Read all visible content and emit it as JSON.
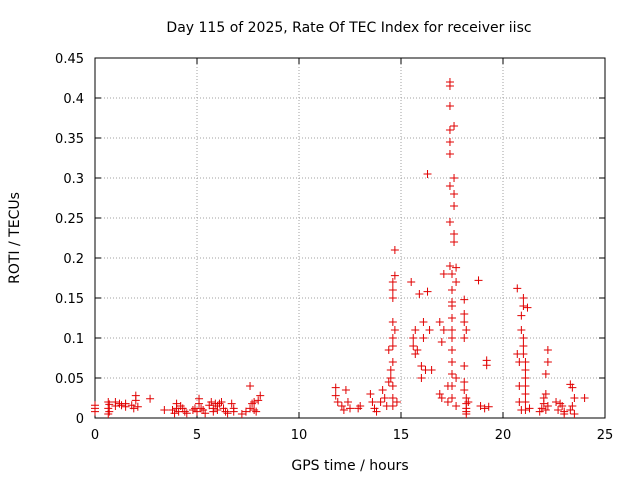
{
  "chart_data": {
    "type": "scatter",
    "title": "Day 115 of 2025, Rate Of TEC Index for receiver iisc",
    "xlabel": "GPS time / hours",
    "ylabel": "ROTI / TECUs",
    "xlim": [
      0,
      25
    ],
    "ylim": [
      0,
      0.45
    ],
    "xticks": [
      "0",
      "5",
      "10",
      "15",
      "20",
      "25"
    ],
    "yticks": [
      "0",
      "0.05",
      "0.1",
      "0.15",
      "0.2",
      "0.25",
      "0.3",
      "0.35",
      "0.4",
      "0.45"
    ],
    "grid": true,
    "marker": "+",
    "color": "#e00000",
    "series": [
      {
        "x": [
          0.0,
          0.0,
          0.0,
          0.65,
          0.65,
          0.65,
          0.7,
          0.7,
          1.0,
          1.0,
          1.2,
          1.3,
          1.5,
          1.5,
          1.8,
          1.9,
          2.0,
          2.0,
          2.1,
          2.7,
          3.4,
          3.8,
          3.9,
          4.0,
          4.0,
          4.1,
          4.2,
          4.3,
          4.4,
          4.5,
          4.8,
          4.9,
          5.0,
          5.1,
          5.1,
          5.2,
          5.3,
          5.4,
          5.6,
          5.7,
          5.8,
          5.8,
          5.9,
          6.0,
          6.0,
          6.1,
          6.2,
          6.3,
          6.4,
          6.5,
          6.7,
          6.8,
          6.8,
          7.2,
          7.4,
          7.6,
          7.6,
          7.7,
          7.8,
          7.8,
          7.9,
          8.0,
          8.1,
          11.8,
          11.8,
          11.9,
          12.1,
          12.2,
          12.3,
          12.4,
          12.5,
          12.9,
          13.0,
          13.5,
          13.6,
          13.7,
          13.8,
          14.0,
          14.1,
          14.2,
          14.3,
          14.4,
          14.4,
          14.5,
          14.5,
          14.6,
          14.6,
          14.6,
          14.6,
          14.6,
          14.6,
          14.6,
          14.6,
          14.6,
          14.6,
          14.7,
          14.7,
          14.7,
          14.8,
          15.5,
          15.6,
          15.6,
          15.7,
          15.7,
          15.8,
          15.9,
          16.0,
          16.0,
          16.1,
          16.1,
          16.2,
          16.3,
          16.3,
          16.4,
          16.5,
          16.9,
          16.9,
          17.0,
          17.0,
          17.1,
          17.1,
          17.3,
          17.3,
          17.4,
          17.4,
          17.4,
          17.4,
          17.4,
          17.4,
          17.4,
          17.4,
          17.4,
          17.5,
          17.5,
          17.5,
          17.5,
          17.5,
          17.5,
          17.5,
          17.5,
          17.5,
          17.5,
          17.5,
          17.5,
          17.6,
          17.6,
          17.6,
          17.6,
          17.6,
          17.6,
          17.7,
          17.7,
          17.7,
          17.7,
          18.1,
          18.1,
          18.1,
          18.1,
          18.1,
          18.1,
          18.1,
          18.2,
          18.2,
          18.2,
          18.2,
          18.2,
          18.2,
          18.3,
          18.8,
          18.9,
          19.1,
          19.2,
          19.2,
          19.3,
          20.7,
          20.7,
          20.8,
          20.8,
          20.8,
          20.9,
          20.9,
          20.9,
          21.0,
          21.0,
          21.0,
          21.0,
          21.0,
          21.1,
          21.1,
          21.1,
          21.1,
          21.1,
          21.1,
          21.1,
          21.2,
          21.3,
          21.8,
          21.9,
          22.0,
          22.0,
          22.1,
          22.1,
          22.1,
          22.2,
          22.2,
          22.2,
          22.6,
          22.7,
          22.8,
          22.9,
          23.0,
          23.0,
          23.3,
          23.3,
          23.4,
          23.4,
          23.5,
          23.5,
          24.0
        ],
        "y": [
          0.008,
          0.012,
          0.016,
          0.005,
          0.012,
          0.02,
          0.008,
          0.017,
          0.015,
          0.02,
          0.018,
          0.016,
          0.014,
          0.018,
          0.016,
          0.012,
          0.022,
          0.028,
          0.014,
          0.024,
          0.01,
          0.01,
          0.006,
          0.012,
          0.018,
          0.008,
          0.015,
          0.012,
          0.008,
          0.006,
          0.01,
          0.012,
          0.008,
          0.018,
          0.024,
          0.012,
          0.01,
          0.006,
          0.016,
          0.02,
          0.008,
          0.012,
          0.018,
          0.015,
          0.01,
          0.018,
          0.02,
          0.012,
          0.008,
          0.006,
          0.018,
          0.012,
          0.008,
          0.005,
          0.008,
          0.04,
          0.012,
          0.018,
          0.02,
          0.01,
          0.008,
          0.022,
          0.028,
          0.038,
          0.028,
          0.02,
          0.015,
          0.01,
          0.035,
          0.02,
          0.012,
          0.012,
          0.015,
          0.03,
          0.02,
          0.012,
          0.008,
          0.02,
          0.035,
          0.025,
          0.015,
          0.045,
          0.085,
          0.05,
          0.06,
          0.17,
          0.16,
          0.15,
          0.12,
          0.1,
          0.09,
          0.07,
          0.04,
          0.025,
          0.015,
          0.21,
          0.178,
          0.11,
          0.02,
          0.17,
          0.1,
          0.09,
          0.11,
          0.08,
          0.085,
          0.155,
          0.065,
          0.05,
          0.12,
          0.1,
          0.06,
          0.305,
          0.158,
          0.11,
          0.06,
          0.03,
          0.12,
          0.095,
          0.025,
          0.18,
          0.11,
          0.04,
          0.02,
          0.42,
          0.415,
          0.39,
          0.36,
          0.345,
          0.33,
          0.29,
          0.245,
          0.19,
          0.18,
          0.16,
          0.145,
          0.14,
          0.125,
          0.11,
          0.1,
          0.085,
          0.07,
          0.055,
          0.04,
          0.025,
          0.365,
          0.3,
          0.28,
          0.265,
          0.23,
          0.22,
          0.188,
          0.17,
          0.05,
          0.015,
          0.148,
          0.13,
          0.12,
          0.1,
          0.065,
          0.045,
          0.035,
          0.025,
          0.018,
          0.012,
          0.008,
          0.005,
          0.11,
          0.02,
          0.172,
          0.015,
          0.012,
          0.072,
          0.066,
          0.014,
          0.162,
          0.08,
          0.07,
          0.04,
          0.02,
          0.128,
          0.11,
          0.01,
          0.15,
          0.14,
          0.1,
          0.09,
          0.08,
          0.07,
          0.06,
          0.05,
          0.04,
          0.03,
          0.02,
          0.01,
          0.138,
          0.012,
          0.008,
          0.012,
          0.018,
          0.025,
          0.01,
          0.055,
          0.03,
          0.085,
          0.07,
          0.015,
          0.02,
          0.01,
          0.018,
          0.015,
          0.008,
          0.005,
          0.042,
          0.01,
          0.038,
          0.015,
          0.025,
          0.005,
          0.025
        ]
      }
    ]
  }
}
